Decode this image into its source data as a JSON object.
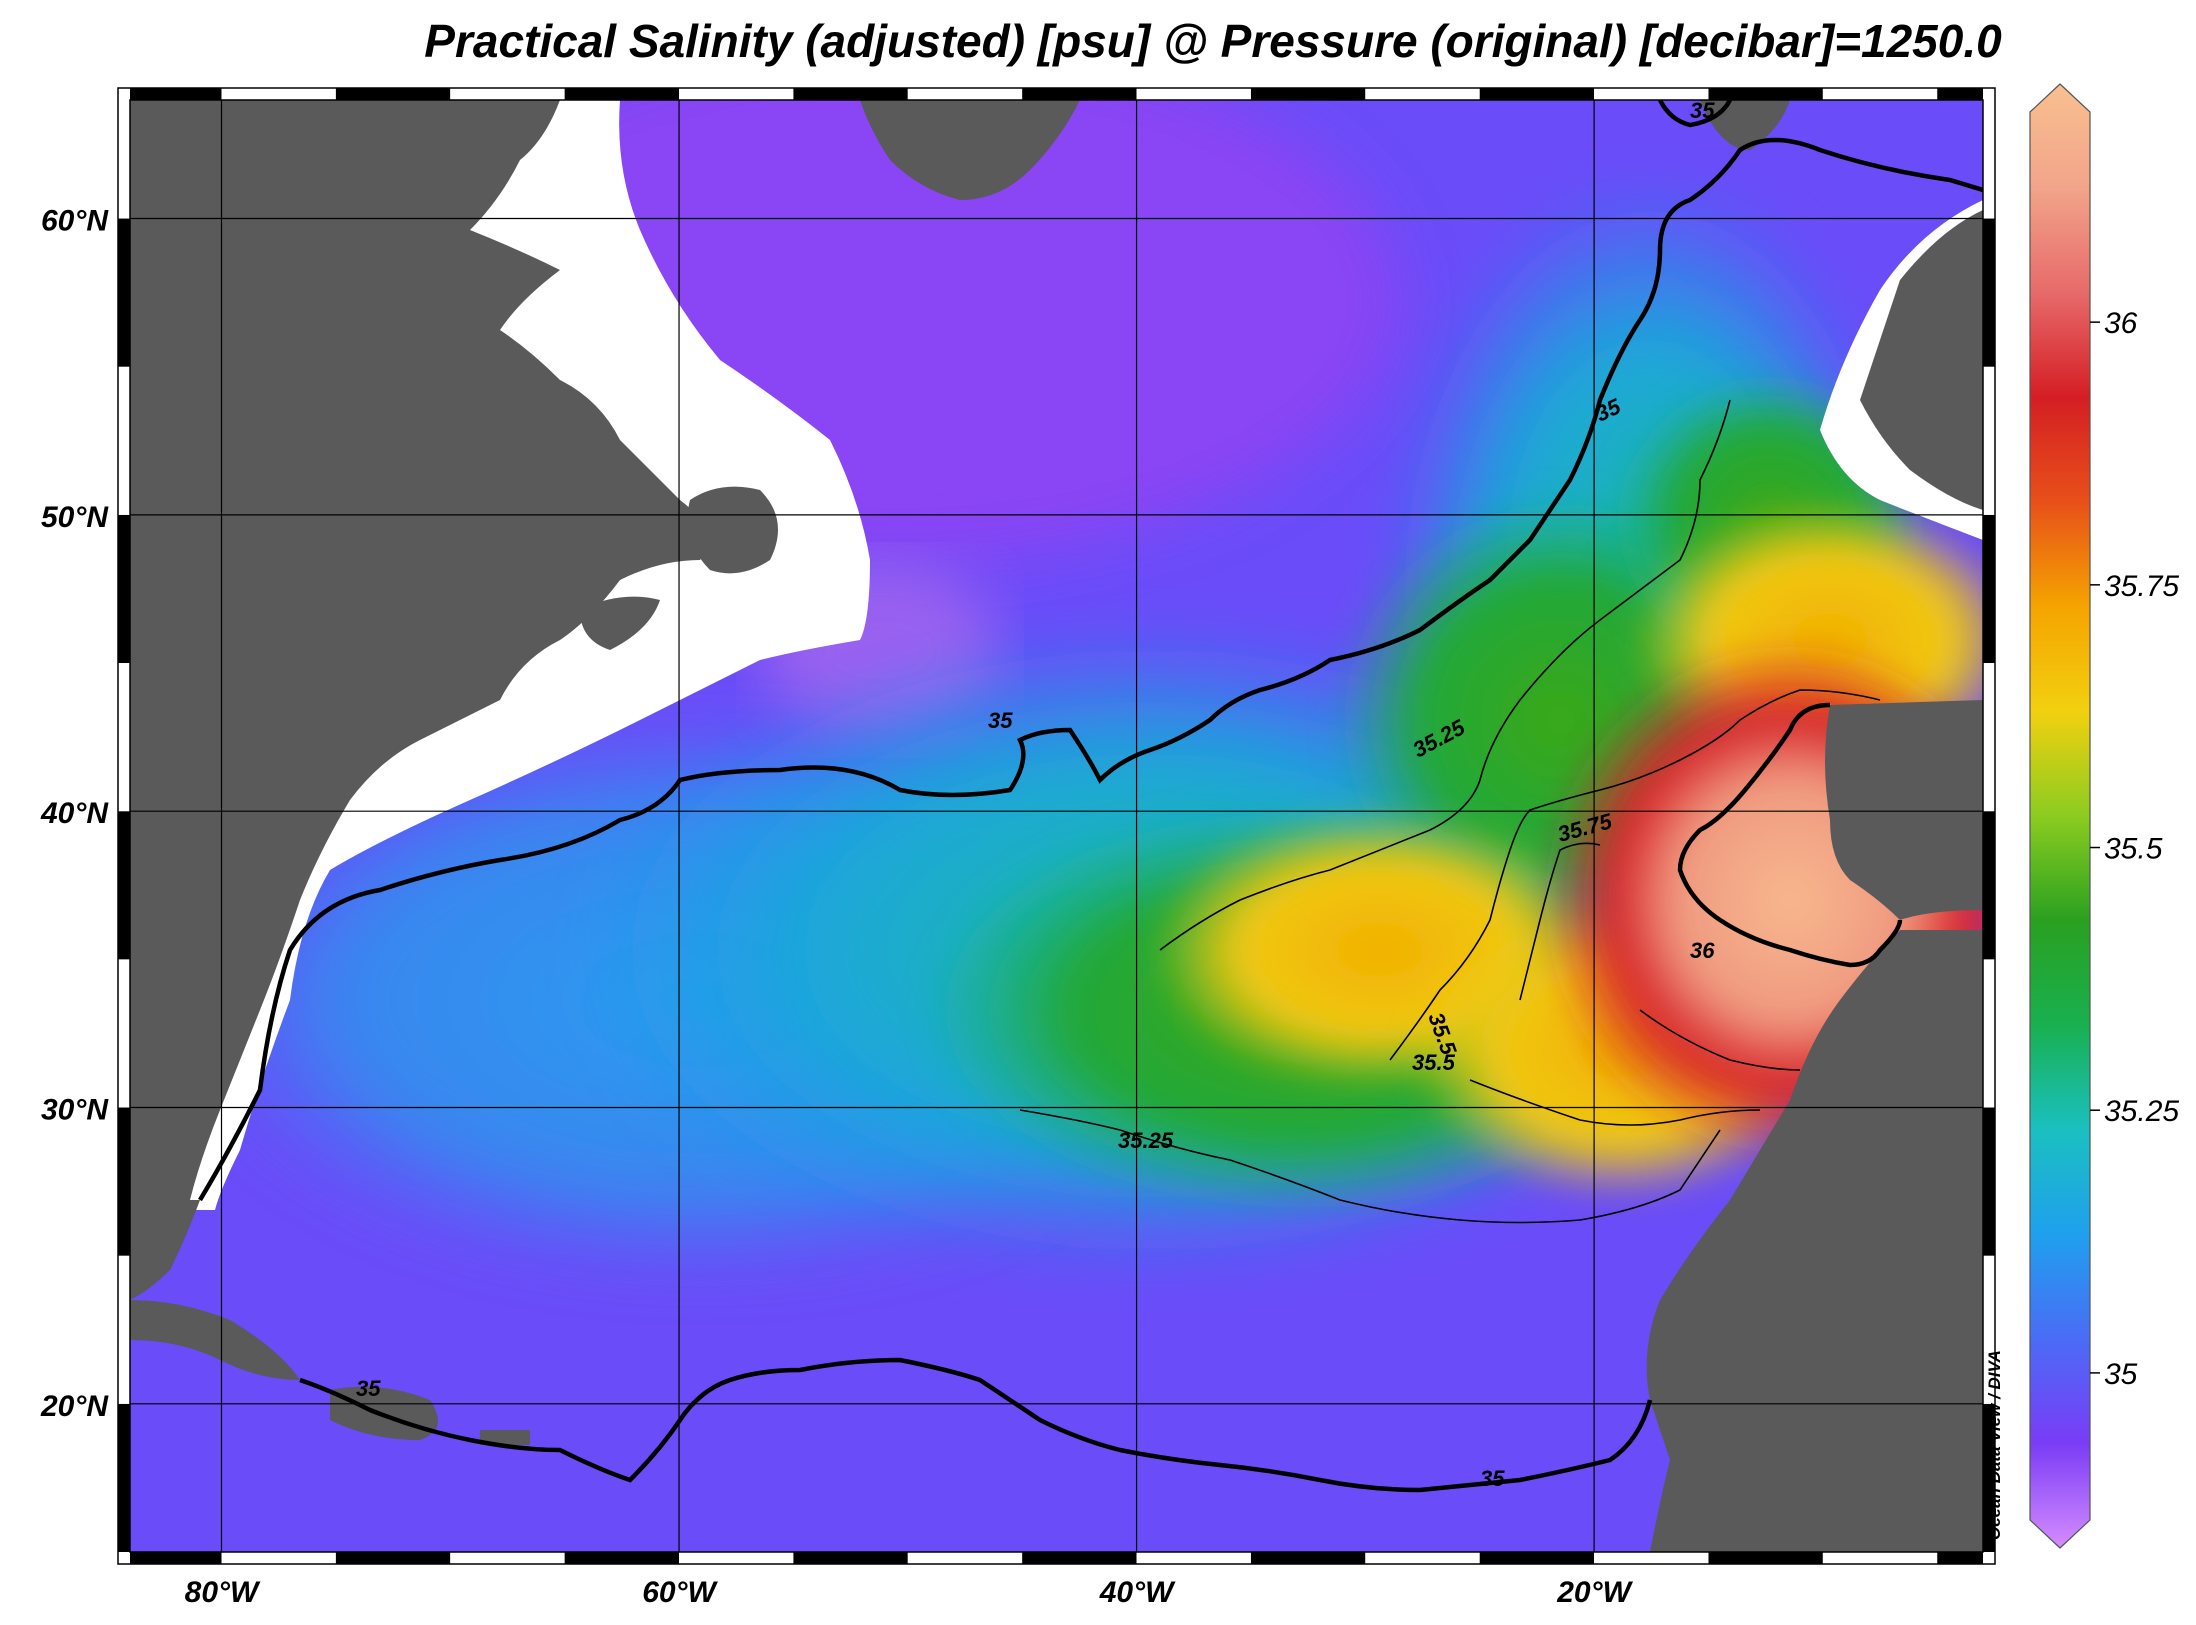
{
  "title": "Practical Salinity (adjusted) [psu] @ Pressure (original) [decibar]=1250.0",
  "credit": "Ocean Data View / DIVA",
  "map": {
    "lon_range": [
      -84,
      -3
    ],
    "lat_range": [
      15,
      64
    ],
    "lon_ticks": [
      -80,
      -60,
      -40,
      -20
    ],
    "lon_tick_labels": [
      "80°W",
      "60°W",
      "40°W",
      "20°W"
    ],
    "lat_ticks": [
      20,
      30,
      40,
      50,
      60
    ],
    "lat_tick_labels": [
      "20°N",
      "30°N",
      "40°N",
      "50°N",
      "60°N"
    ],
    "grid": true,
    "land_color": "#5a5a5a",
    "nodata_color": "#ffffff"
  },
  "colorbar": {
    "ticks": [
      35,
      35.25,
      35.5,
      35.75,
      36
    ],
    "tick_labels": [
      "35",
      "35.25",
      "35.5",
      "35.75",
      "36"
    ],
    "stops": [
      "#d58cff",
      "#7a3cf6",
      "#4a6cf6",
      "#1fa0ee",
      "#1ac0c0",
      "#19b050",
      "#2aa020",
      "#8ccc20",
      "#f2d010",
      "#f5a400",
      "#e8501a",
      "#d41e24",
      "#e76a6a",
      "#f2a48a",
      "#f8c090"
    ]
  },
  "contour_labels": [
    {
      "text": "35"
    },
    {
      "text": "35"
    },
    {
      "text": "35"
    },
    {
      "text": "35"
    },
    {
      "text": "35"
    },
    {
      "text": "35.25"
    },
    {
      "text": "35.25"
    },
    {
      "text": "35.5"
    },
    {
      "text": "35.5"
    },
    {
      "text": "35.75"
    },
    {
      "text": "36"
    }
  ]
}
